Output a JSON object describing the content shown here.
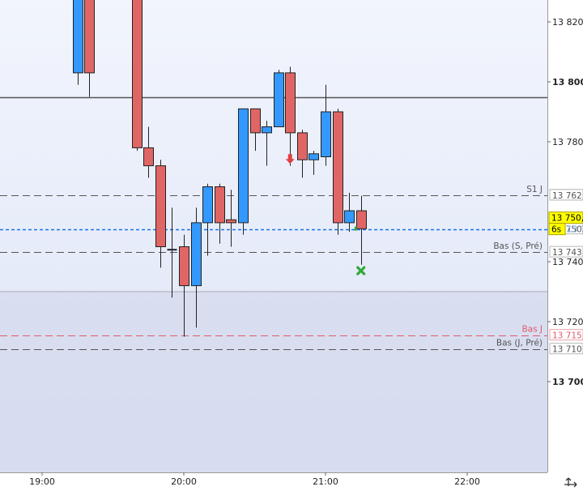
{
  "chart_data": {
    "type": "candlestick",
    "title": "",
    "xlabel": "",
    "ylabel": "",
    "ylim": [
      13678,
      13830
    ],
    "grid": false,
    "x_ticks": [
      "19:00",
      "20:00",
      "21:00",
      "22:00"
    ],
    "y_ticks": [
      {
        "value": 13820,
        "label": "13 820",
        "bold": false
      },
      {
        "value": 13800,
        "label": "13 800",
        "bold": true
      },
      {
        "value": 13780,
        "label": "13 780",
        "bold": false
      },
      {
        "value": 13740,
        "label": "13 740",
        "bold": false
      },
      {
        "value": 13720,
        "label": "13 720",
        "bold": false
      },
      {
        "value": 13700,
        "label": "13 700",
        "bold": true
      }
    ],
    "candles": [
      {
        "x": "19:15",
        "open": 13803,
        "high": 13830,
        "low": 13799,
        "close": 13830
      },
      {
        "x": "19:20",
        "open": 13830,
        "high": 13830,
        "low": 13795,
        "close": 13803
      },
      {
        "x": "19:40",
        "open": 13830,
        "high": 13830,
        "low": 13777,
        "close": 13778
      },
      {
        "x": "19:45",
        "open": 13778,
        "high": 13785,
        "low": 13768,
        "close": 13772
      },
      {
        "x": "19:50",
        "open": 13772,
        "high": 13774,
        "low": 13738,
        "close": 13745
      },
      {
        "x": "19:55",
        "open": 13744,
        "high": 13758,
        "low": 13728,
        "close": 13744
      },
      {
        "x": "20:00",
        "open": 13745,
        "high": 13749,
        "low": 13715,
        "close": 13732
      },
      {
        "x": "20:05",
        "open": 13732,
        "high": 13758,
        "low": 13718,
        "close": 13753
      },
      {
        "x": "20:10",
        "open": 13753,
        "high": 13766,
        "low": 13742,
        "close": 13765
      },
      {
        "x": "20:15",
        "open": 13765,
        "high": 13766,
        "low": 13746,
        "close": 13753
      },
      {
        "x": "20:20",
        "open": 13754,
        "high": 13764,
        "low": 13745,
        "close": 13753
      },
      {
        "x": "20:25",
        "open": 13753,
        "high": 13791,
        "low": 13749,
        "close": 13791
      },
      {
        "x": "20:30",
        "open": 13791,
        "high": 13791,
        "low": 13777,
        "close": 13783
      },
      {
        "x": "20:35",
        "open": 13783,
        "high": 13787,
        "low": 13772,
        "close": 13785
      },
      {
        "x": "20:40",
        "open": 13785,
        "high": 13804,
        "low": 13785,
        "close": 13803
      },
      {
        "x": "20:45",
        "open": 13803,
        "high": 13805,
        "low": 13772,
        "close": 13783
      },
      {
        "x": "20:50",
        "open": 13783,
        "high": 13784,
        "low": 13768,
        "close": 13774
      },
      {
        "x": "20:55",
        "open": 13774,
        "high": 13777,
        "low": 13769,
        "close": 13776
      },
      {
        "x": "21:00",
        "open": 13775,
        "high": 13799,
        "low": 13772,
        "close": 13790
      },
      {
        "x": "21:05",
        "open": 13790,
        "high": 13791,
        "low": 13749,
        "close": 13753
      },
      {
        "x": "21:10",
        "open": 13753,
        "high": 13763,
        "low": 13750,
        "close": 13757
      },
      {
        "x": "21:15",
        "open": 13757,
        "high": 13762,
        "low": 13739,
        "close": 13751
      }
    ],
    "hlines": [
      {
        "name": "",
        "value": 13795,
        "style": "solid",
        "color": "#555555",
        "label": ""
      },
      {
        "name": "S1 J",
        "value": 13762.2,
        "style": "dashed",
        "color": "#555555",
        "label": "13 762,2"
      },
      {
        "name": "",
        "value": 13762.2,
        "style": "none",
        "color": "#666666",
        "label": "13 762,2"
      },
      {
        "name": "6s",
        "value": 13750.9,
        "style": "dotted",
        "color": "#1a73e8",
        "label": "13 750,9"
      },
      {
        "name": "",
        "value": 13750.9,
        "style": "none",
        "color": "#1a73e8",
        "label": "13 750,9"
      },
      {
        "name": "Bas (S, Pré)",
        "value": 13743.2,
        "style": "dashed",
        "color": "#555555",
        "label": "13 743,2"
      },
      {
        "name": "Bas J",
        "value": 13715.5,
        "style": "dashed",
        "color": "#e05a6a",
        "label": "13 715,5"
      },
      {
        "name": "Bas (J, Pré)",
        "value": 13710.9,
        "style": "dashed",
        "color": "#555555",
        "label": "13 710,9"
      }
    ],
    "markers": [
      {
        "type": "down-arrow",
        "x": "20:45",
        "value": 13774
      },
      {
        "type": "cross",
        "x": "21:15",
        "value": 13737
      }
    ],
    "price_tag": {
      "value": 13750.9,
      "label": "13 750,9",
      "timer": "6s"
    },
    "shaded_zone": {
      "from": 13678,
      "to": 13730
    },
    "colors": {
      "up": "#3399ff",
      "down": "#e06666",
      "plot_bg_top": "#f2f5fd",
      "plot_bg_bottom": "#dde4f6",
      "zone": "#d4d9ee",
      "price_tag": "#ffff00"
    }
  }
}
